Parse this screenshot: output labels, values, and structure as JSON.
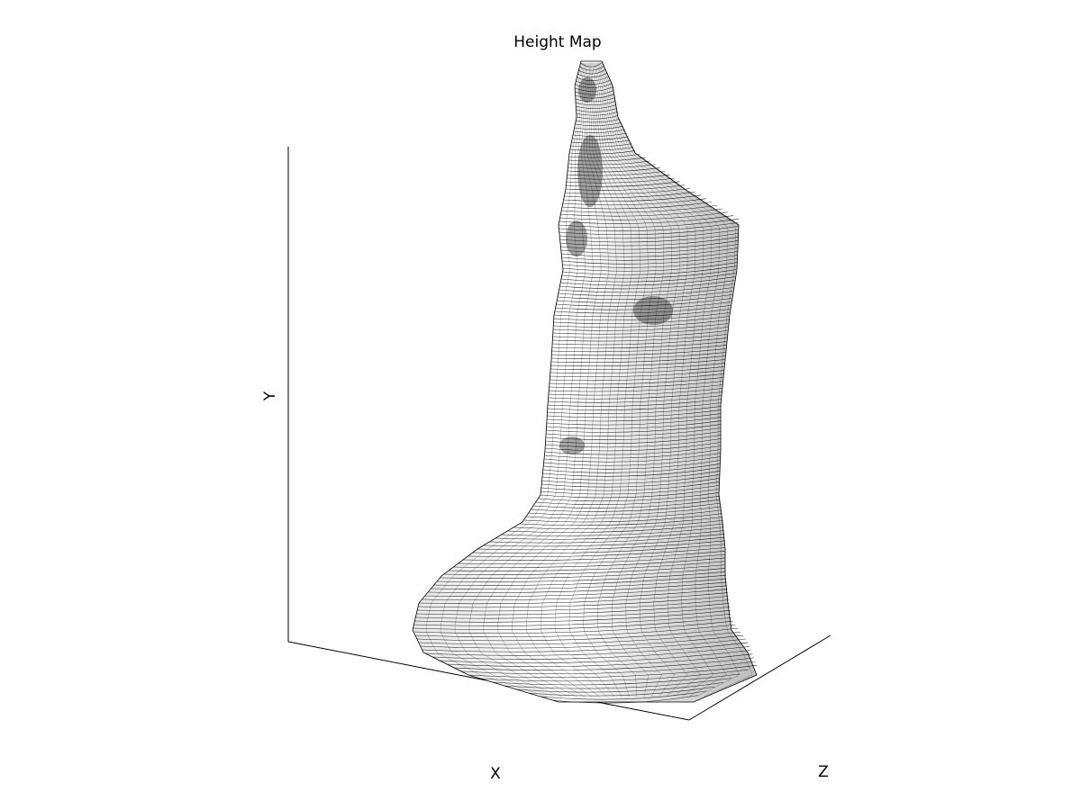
{
  "chart_data": {
    "type": "surface-3d",
    "title": "Height Map",
    "xlabel": "X",
    "ylabel": "Y",
    "zlabel": "Z",
    "grid": false,
    "legend": "none",
    "colormap": "grayscale",
    "colors": {
      "background": "#ffffff",
      "ink": "#000000"
    }
  }
}
